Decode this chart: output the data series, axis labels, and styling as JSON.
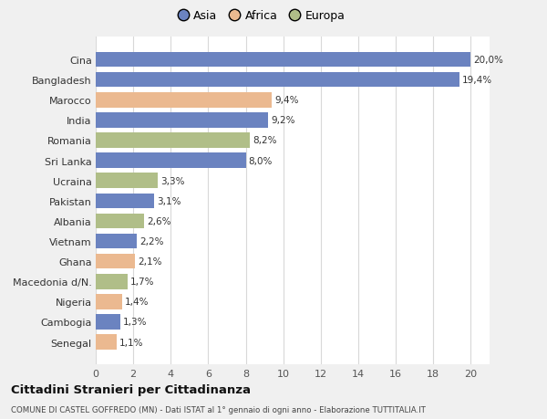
{
  "countries": [
    "Cina",
    "Bangladesh",
    "Marocco",
    "India",
    "Romania",
    "Sri Lanka",
    "Ucraina",
    "Pakistan",
    "Albania",
    "Vietnam",
    "Ghana",
    "Macedonia d/N.",
    "Nigeria",
    "Cambogia",
    "Senegal"
  ],
  "values": [
    20.0,
    19.4,
    9.4,
    9.2,
    8.2,
    8.0,
    3.3,
    3.1,
    2.6,
    2.2,
    2.1,
    1.7,
    1.4,
    1.3,
    1.1
  ],
  "labels": [
    "20,0%",
    "19,4%",
    "9,4%",
    "9,2%",
    "8,2%",
    "8,0%",
    "3,3%",
    "3,1%",
    "2,6%",
    "2,2%",
    "2,1%",
    "1,7%",
    "1,4%",
    "1,3%",
    "1,1%"
  ],
  "continents": [
    "Asia",
    "Asia",
    "Africa",
    "Asia",
    "Europa",
    "Asia",
    "Europa",
    "Asia",
    "Europa",
    "Asia",
    "Africa",
    "Europa",
    "Africa",
    "Asia",
    "Africa"
  ],
  "colors": {
    "Asia": "#6b83c0",
    "Africa": "#ebb990",
    "Europa": "#b0be88"
  },
  "legend_labels": [
    "Asia",
    "Africa",
    "Europa"
  ],
  "xlim": [
    0,
    21
  ],
  "xticks": [
    0,
    2,
    4,
    6,
    8,
    10,
    12,
    14,
    16,
    18,
    20
  ],
  "title": "Cittadini Stranieri per Cittadinanza",
  "subtitle": "COMUNE DI CASTEL GOFFREDO (MN) - Dati ISTAT al 1° gennaio di ogni anno - Elaborazione TUTTITALIA.IT",
  "bg_color": "#f0f0f0",
  "plot_bg": "#ffffff"
}
